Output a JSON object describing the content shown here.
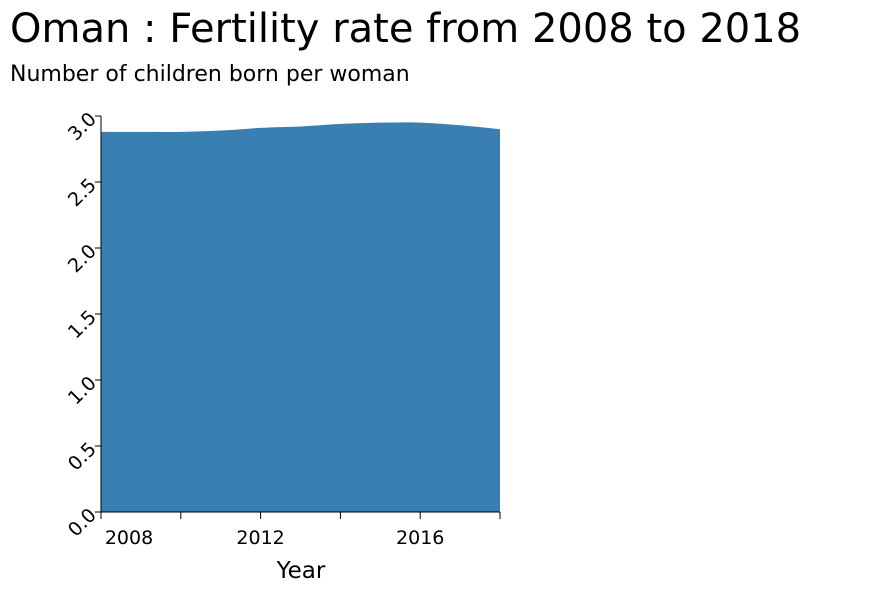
{
  "chart_data": {
    "type": "area",
    "title": "Oman : Fertility rate from 2008 to 2018",
    "subtitle": "Number of children born per woman",
    "xlabel": "Year",
    "ylabel": "",
    "x": [
      2008,
      2009,
      2010,
      2011,
      2012,
      2013,
      2014,
      2015,
      2016,
      2017,
      2018
    ],
    "values": [
      2.88,
      2.88,
      2.88,
      2.89,
      2.91,
      2.92,
      2.94,
      2.95,
      2.95,
      2.93,
      2.9
    ],
    "xlim": [
      2008,
      2018
    ],
    "ylim": [
      0,
      3
    ],
    "x_ticks": [
      2008,
      2010,
      2012,
      2014,
      2016,
      2018
    ],
    "x_tick_labels": [
      "2008",
      "",
      "2012",
      "",
      "2016",
      ""
    ],
    "y_ticks": [
      0,
      0.5,
      1,
      1.5,
      2,
      2.5,
      3
    ],
    "y_tick_labels": [
      "0.0",
      "0.5",
      "1.0",
      "1.5",
      "2.0",
      "2.5",
      "3.0"
    ],
    "color": "#3a7fb2",
    "grid": false,
    "legend": "none"
  }
}
